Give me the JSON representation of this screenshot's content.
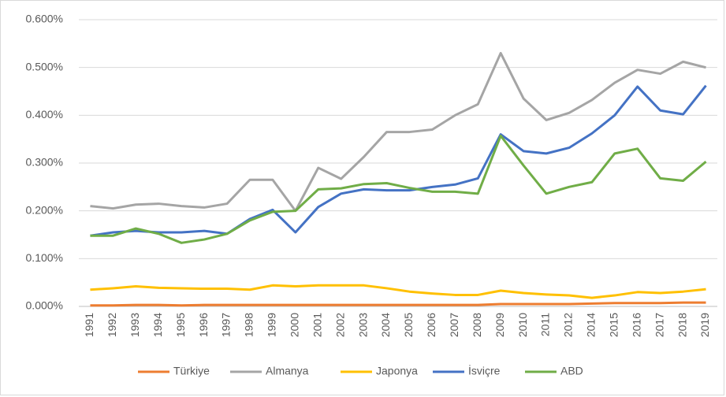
{
  "chart_data": {
    "type": "line",
    "categories": [
      "1991",
      "1992",
      "1993",
      "1994",
      "1995",
      "1996",
      "1997",
      "1998",
      "1999",
      "2000",
      "2001",
      "2002",
      "2003",
      "2004",
      "2005",
      "2006",
      "2007",
      "2008",
      "2009",
      "2010",
      "2011",
      "2012",
      "2014",
      "2015",
      "2016",
      "2017",
      "2018",
      "2019"
    ],
    "series": [
      {
        "name": "Türkiye",
        "color": "#ed7d31",
        "values": [
          0.002,
          0.002,
          0.003,
          0.003,
          0.002,
          0.003,
          0.003,
          0.003,
          0.003,
          0.003,
          0.003,
          0.003,
          0.003,
          0.003,
          0.003,
          0.003,
          0.003,
          0.003,
          0.005,
          0.005,
          0.005,
          0.005,
          0.006,
          0.007,
          0.007,
          0.007,
          0.008,
          0.008
        ]
      },
      {
        "name": "Almanya",
        "color": "#a5a5a5",
        "values": [
          0.21,
          0.205,
          0.213,
          0.215,
          0.21,
          0.207,
          0.215,
          0.265,
          0.265,
          0.2,
          0.29,
          0.267,
          0.313,
          0.365,
          0.365,
          0.37,
          0.4,
          0.423,
          0.53,
          0.435,
          0.39,
          0.405,
          0.432,
          0.468,
          0.495,
          0.487,
          0.512,
          0.5
        ]
      },
      {
        "name": "Japonya",
        "color": "#ffc000",
        "values": [
          0.035,
          0.038,
          0.042,
          0.039,
          0.038,
          0.037,
          0.037,
          0.035,
          0.044,
          0.042,
          0.044,
          0.044,
          0.044,
          0.038,
          0.031,
          0.027,
          0.024,
          0.024,
          0.033,
          0.028,
          0.025,
          0.023,
          0.018,
          0.023,
          0.03,
          0.028,
          0.031,
          0.036
        ]
      },
      {
        "name": "İsviçre",
        "color": "#4472c4",
        "values": [
          0.148,
          0.155,
          0.158,
          0.155,
          0.155,
          0.158,
          0.152,
          0.183,
          0.202,
          0.155,
          0.208,
          0.236,
          0.245,
          0.243,
          0.243,
          0.25,
          0.255,
          0.268,
          0.36,
          0.325,
          0.32,
          0.332,
          0.362,
          0.4,
          0.46,
          0.41,
          0.402,
          0.462
        ]
      },
      {
        "name": "ABD",
        "color": "#70ad47",
        "values": [
          0.148,
          0.148,
          0.163,
          0.152,
          0.133,
          0.14,
          0.152,
          0.18,
          0.198,
          0.2,
          0.245,
          0.247,
          0.256,
          0.258,
          0.248,
          0.24,
          0.24,
          0.236,
          0.357,
          0.295,
          0.236,
          0.25,
          0.26,
          0.32,
          0.33,
          0.268,
          0.263,
          0.303
        ]
      }
    ],
    "ylim": [
      0,
      0.6
    ],
    "yticks": [
      {
        "value": 0,
        "label": "0.000%"
      },
      {
        "value": 0.1,
        "label": "0.100%"
      },
      {
        "value": 0.2,
        "label": "0.200%"
      },
      {
        "value": 0.3,
        "label": "0.300%"
      },
      {
        "value": 0.4,
        "label": "0.400%"
      },
      {
        "value": 0.5,
        "label": "0.500%"
      },
      {
        "value": 0.6,
        "label": "0.600%"
      }
    ],
    "grid": true,
    "legend": "bottom"
  }
}
